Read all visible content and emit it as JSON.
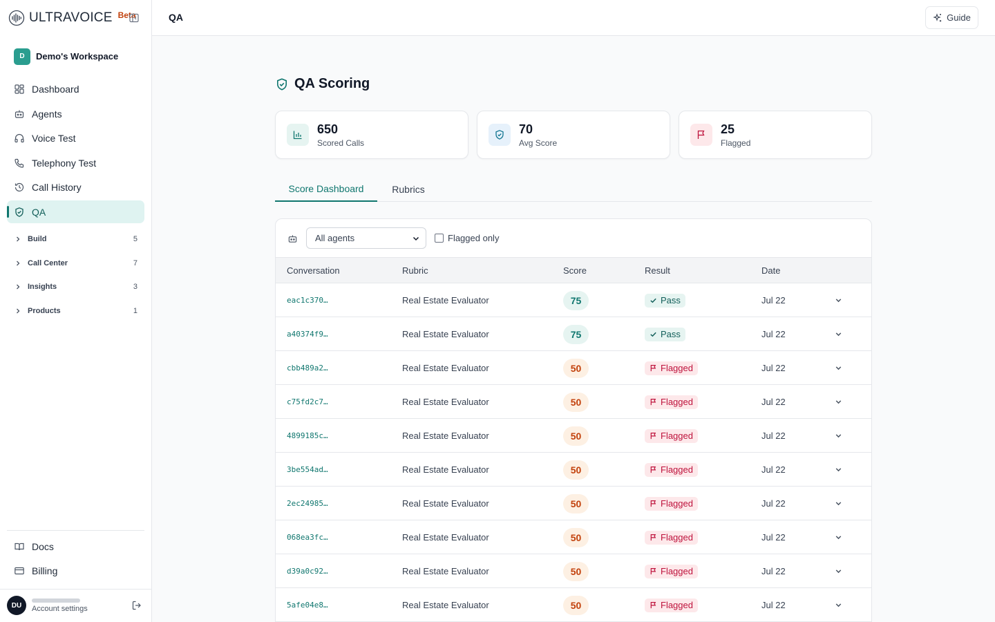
{
  "brand": {
    "name": "ULTRAVOICE",
    "badge": "Beta"
  },
  "workspace": {
    "initial": "D",
    "name": "Demo's Workspace"
  },
  "nav": [
    {
      "label": "Dashboard",
      "icon": "dashboard-icon"
    },
    {
      "label": "Agents",
      "icon": "bot-icon"
    },
    {
      "label": "Voice Test",
      "icon": "headphones-icon"
    },
    {
      "label": "Telephony Test",
      "icon": "phone-icon"
    },
    {
      "label": "Call History",
      "icon": "history-icon"
    },
    {
      "label": "QA",
      "icon": "shield-check-icon",
      "active": true
    }
  ],
  "groups": [
    {
      "label": "Build",
      "count": "5"
    },
    {
      "label": "Call Center",
      "count": "7"
    },
    {
      "label": "Insights",
      "count": "3"
    },
    {
      "label": "Products",
      "count": "1"
    }
  ],
  "footer_nav": [
    {
      "label": "Docs",
      "icon": "book-icon"
    },
    {
      "label": "Billing",
      "icon": "credit-card-icon"
    }
  ],
  "account": {
    "initials": "DU",
    "settings_label": "Account settings"
  },
  "topbar": {
    "title": "QA",
    "guide_label": "Guide"
  },
  "page": {
    "title": "QA Scoring"
  },
  "stats": [
    {
      "value": "650",
      "label": "Scored Calls",
      "icon": "bar-chart-icon",
      "bg": "#e6f4f1",
      "fg": "#0f766e"
    },
    {
      "value": "70",
      "label": "Avg Score",
      "icon": "shield-check-icon",
      "bg": "#e6f1fb",
      "fg": "#0e7490"
    },
    {
      "value": "25",
      "label": "Flagged",
      "icon": "flag-icon",
      "bg": "#fde8ea",
      "fg": "#be123c"
    }
  ],
  "tabs": [
    {
      "label": "Score Dashboard",
      "active": true
    },
    {
      "label": "Rubrics",
      "active": false
    }
  ],
  "filters": {
    "agent_select": "All agents",
    "flagged_only_label": "Flagged only",
    "flagged_only_checked": false
  },
  "table": {
    "columns": [
      "Conversation",
      "Rubric",
      "Score",
      "Result",
      "Date"
    ],
    "rows": [
      {
        "id": "eac1c370…",
        "rubric": "Real Estate Evaluator",
        "score": "75",
        "result": "Pass",
        "date": "Jul 22"
      },
      {
        "id": "a40374f9…",
        "rubric": "Real Estate Evaluator",
        "score": "75",
        "result": "Pass",
        "date": "Jul 22"
      },
      {
        "id": "cbb489a2…",
        "rubric": "Real Estate Evaluator",
        "score": "50",
        "result": "Flagged",
        "date": "Jul 22"
      },
      {
        "id": "c75fd2c7…",
        "rubric": "Real Estate Evaluator",
        "score": "50",
        "result": "Flagged",
        "date": "Jul 22"
      },
      {
        "id": "4899185c…",
        "rubric": "Real Estate Evaluator",
        "score": "50",
        "result": "Flagged",
        "date": "Jul 22"
      },
      {
        "id": "3be554ad…",
        "rubric": "Real Estate Evaluator",
        "score": "50",
        "result": "Flagged",
        "date": "Jul 22"
      },
      {
        "id": "2ec24985…",
        "rubric": "Real Estate Evaluator",
        "score": "50",
        "result": "Flagged",
        "date": "Jul 22"
      },
      {
        "id": "068ea3fc…",
        "rubric": "Real Estate Evaluator",
        "score": "50",
        "result": "Flagged",
        "date": "Jul 22"
      },
      {
        "id": "d39a0c92…",
        "rubric": "Real Estate Evaluator",
        "score": "50",
        "result": "Flagged",
        "date": "Jul 22"
      },
      {
        "id": "5afe04e8…",
        "rubric": "Real Estate Evaluator",
        "score": "50",
        "result": "Flagged",
        "date": "Jul 22"
      }
    ]
  },
  "colors": {
    "accent": "#0f766e",
    "pass": "#0f766e",
    "flagged": "#be123c",
    "score_flag": "#c2410c"
  }
}
